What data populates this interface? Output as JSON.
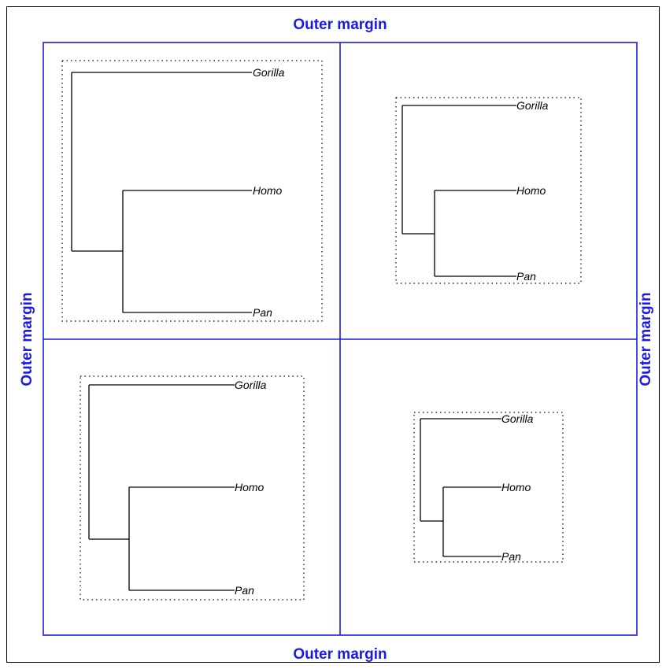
{
  "outer_margin_labels": {
    "top": "Outer margin",
    "bottom": "Outer margin",
    "left": "Outer margin",
    "right": "Outer margin"
  },
  "tree": {
    "tips": [
      "Gorilla",
      "Homo",
      "Pan"
    ]
  },
  "colors": {
    "margin": "#1a1ae6",
    "branch": "#000000",
    "plot_box": "#000000"
  }
}
